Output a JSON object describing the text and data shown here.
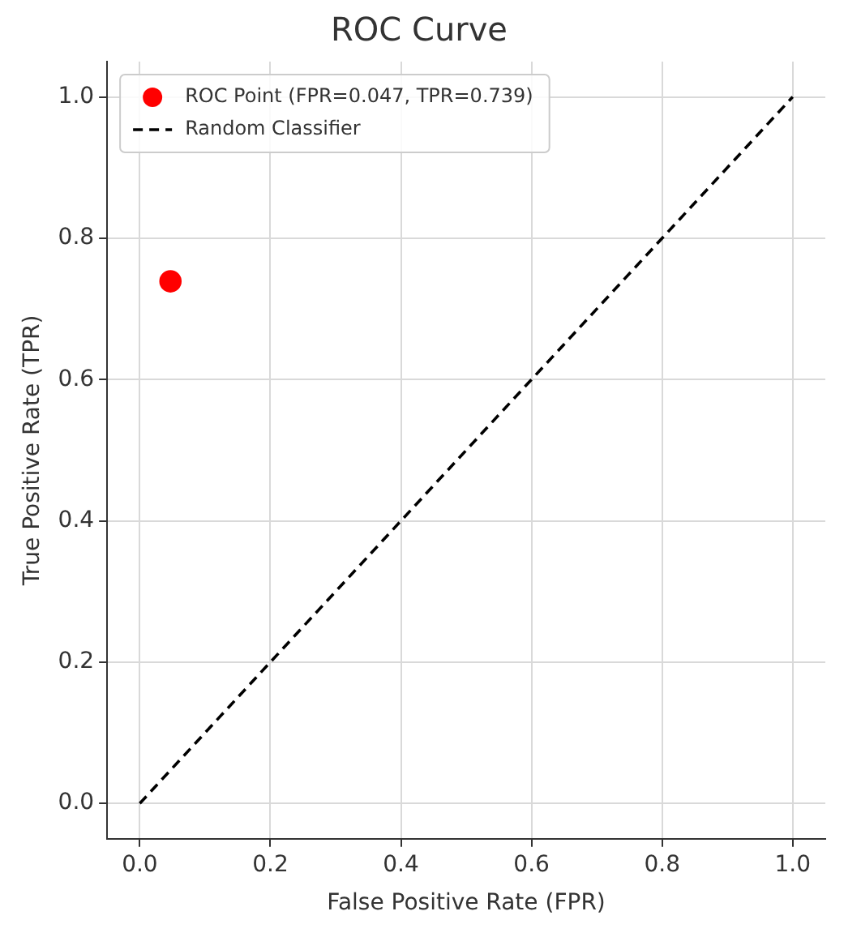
{
  "chart_data": {
    "type": "scatter",
    "title": "ROC Curve",
    "xlabel": "False Positive Rate (FPR)",
    "ylabel": "True Positive Rate (TPR)",
    "series": [
      {
        "name": "ROC Point (FPR=0.047, TPR=0.739)",
        "type": "scatter",
        "color": "#ff0000",
        "x": [
          0.047
        ],
        "values": [
          0.739
        ],
        "marker": "circle"
      },
      {
        "name": "Random Classifier",
        "type": "line",
        "color": "#000000",
        "x": [
          0,
          1
        ],
        "values": [
          0,
          1
        ],
        "marker": "none",
        "line_style": "dashed"
      }
    ],
    "xlim": [
      -0.05,
      1.05
    ],
    "ylim": [
      -0.05,
      1.05
    ],
    "xticks": [
      {
        "value": 0,
        "label": "0.0"
      },
      {
        "value": 0.2,
        "label": "0.2"
      },
      {
        "value": 0.4,
        "label": "0.4"
      },
      {
        "value": 0.6,
        "label": "0.6"
      },
      {
        "value": 0.8,
        "label": "0.8"
      },
      {
        "value": 1,
        "label": "1.0"
      }
    ],
    "yticks": [
      {
        "value": 0,
        "label": "0.0"
      },
      {
        "value": 0.2,
        "label": "0.2"
      },
      {
        "value": 0.4,
        "label": "0.4"
      },
      {
        "value": 0.6,
        "label": "0.6"
      },
      {
        "value": 0.8,
        "label": "0.8"
      },
      {
        "value": 1,
        "label": "1.0"
      }
    ],
    "grid": true,
    "legend": "top left"
  }
}
